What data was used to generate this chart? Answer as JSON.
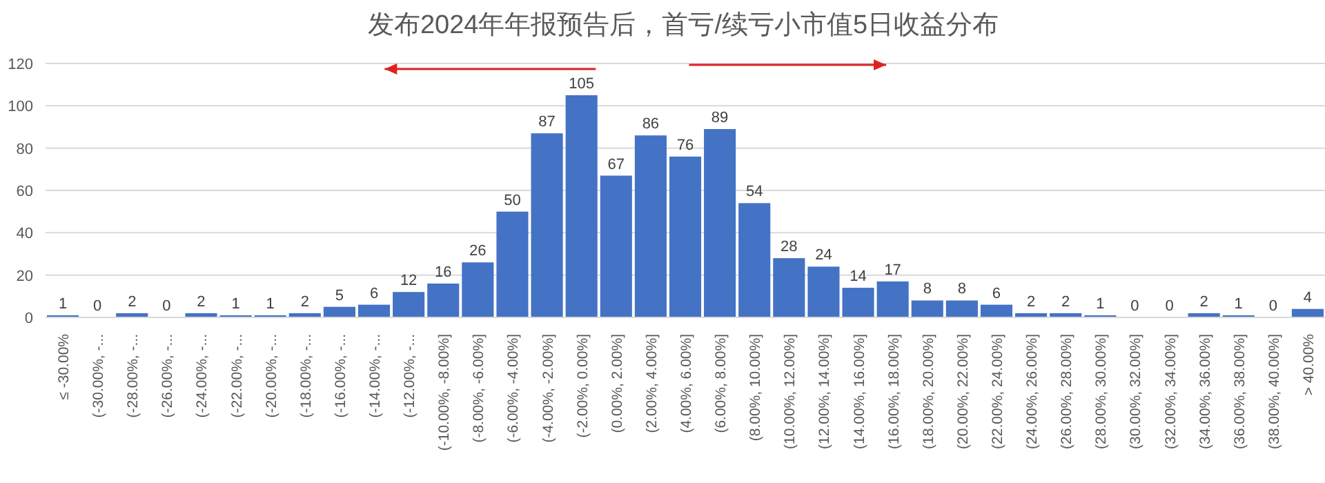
{
  "chart_data": {
    "type": "bar",
    "title": "发布2024年年报预告后，首亏/续亏小市值5日收益分布",
    "categories": [
      "≤ -30.00%",
      "(-30.00%, -...",
      "(-28.00%, -...",
      "(-26.00%, -...",
      "(-24.00%, -...",
      "(-22.00%, -...",
      "(-20.00%, -...",
      "(-18.00%, -...",
      "(-16.00%, -...",
      "(-14.00%, -...",
      "(-12.00%, -...",
      "(-10.00%, -8.00%]",
      "(-8.00%, -6.00%]",
      "(-6.00%, -4.00%]",
      "(-4.00%, -2.00%]",
      "(-2.00%, 0.00%]",
      "(0.00%, 2.00%]",
      "(2.00%, 4.00%]",
      "(4.00%, 6.00%]",
      "(6.00%, 8.00%]",
      "(8.00%, 10.00%]",
      "(10.00%, 12.00%]",
      "(12.00%, 14.00%]",
      "(14.00%, 16.00%]",
      "(16.00%, 18.00%]",
      "(18.00%, 20.00%]",
      "(20.00%, 22.00%]",
      "(22.00%, 24.00%]",
      "(24.00%, 26.00%]",
      "(26.00%, 28.00%]",
      "(28.00%, 30.00%]",
      "(30.00%, 32.00%]",
      "(32.00%, 34.00%]",
      "(34.00%, 36.00%]",
      "(36.00%, 38.00%]",
      "(38.00%, 40.00%]",
      "> 40.00%"
    ],
    "values": [
      1,
      0,
      2,
      0,
      2,
      1,
      1,
      2,
      5,
      6,
      12,
      16,
      26,
      50,
      87,
      105,
      67,
      86,
      76,
      89,
      54,
      28,
      24,
      14,
      17,
      8,
      8,
      6,
      2,
      2,
      1,
      0,
      0,
      2,
      1,
      0,
      4
    ],
    "color": "#4472c4",
    "ylim": [
      0,
      120
    ],
    "yticks": [
      0,
      20,
      40,
      60,
      80,
      100,
      120
    ],
    "grid": "y",
    "data_labels": true
  }
}
